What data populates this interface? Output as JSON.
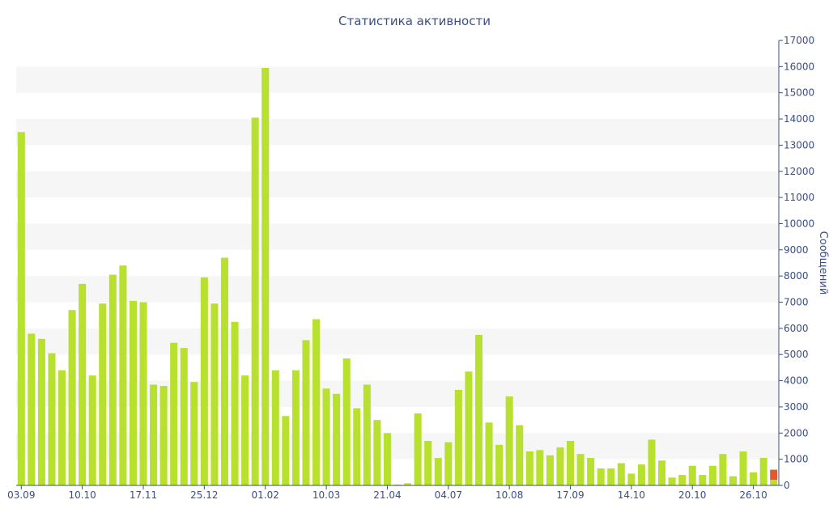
{
  "chart_data": {
    "type": "bar",
    "title": "Статистика активности",
    "ylabel": "Сообщений",
    "xlabel": "",
    "ylim": [
      0,
      17000
    ],
    "yticks": [
      0,
      1000,
      2000,
      3000,
      4000,
      5000,
      6000,
      7000,
      8000,
      9000,
      10000,
      11000,
      12000,
      13000,
      14000,
      15000,
      16000,
      17000
    ],
    "y_axis_side": "right",
    "grid": "alternating horizontal bands",
    "x_tick_labels": [
      {
        "index": 0,
        "label": "03.09"
      },
      {
        "index": 6,
        "label": "10.10"
      },
      {
        "index": 12,
        "label": "17.11"
      },
      {
        "index": 18,
        "label": "25.12"
      },
      {
        "index": 24,
        "label": "01.02"
      },
      {
        "index": 30,
        "label": "10.03"
      },
      {
        "index": 36,
        "label": "21.04"
      },
      {
        "index": 42,
        "label": "04.07"
      },
      {
        "index": 48,
        "label": "10.08"
      },
      {
        "index": 54,
        "label": "17.09"
      },
      {
        "index": 60,
        "label": "14.10"
      },
      {
        "index": 66,
        "label": "20.10"
      },
      {
        "index": 72,
        "label": "26.10"
      }
    ],
    "values": [
      13500,
      5800,
      5600,
      5050,
      4400,
      6700,
      7700,
      4200,
      6950,
      8050,
      8400,
      7050,
      7000,
      3850,
      3800,
      5450,
      5250,
      3950,
      7950,
      6950,
      8700,
      6250,
      4200,
      14050,
      15950,
      4400,
      2650,
      4400,
      5550,
      6350,
      3700,
      3500,
      4850,
      2950,
      3850,
      2500,
      2000,
      30,
      80,
      2750,
      1700,
      1050,
      1650,
      3650,
      4350,
      5750,
      2400,
      1550,
      3400,
      2300,
      1300,
      1350,
      1150,
      1450,
      1700,
      1200,
      1050,
      650,
      650,
      850,
      450,
      800,
      1750,
      950,
      300,
      400,
      750,
      400,
      750,
      1200,
      350,
      1300,
      500,
      1050,
      600
    ],
    "colors": {
      "bar": "#b8e02e",
      "highlight": "#e4582e",
      "text": "#3b4f87",
      "band": "#f6f6f6",
      "axis": "#3b4f87"
    },
    "highlight_last": true
  }
}
